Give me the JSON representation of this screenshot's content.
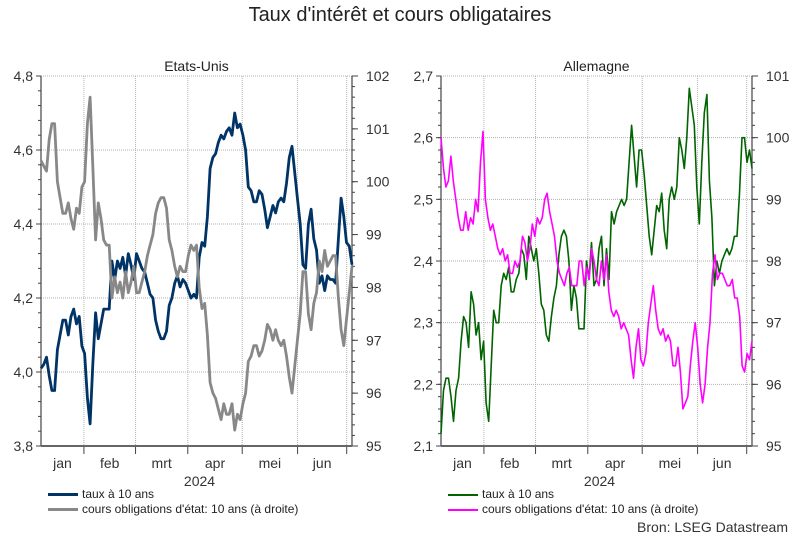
{
  "title": "Taux d'intérêt et cours obligataires",
  "source": "Bron: LSEG Datastream",
  "colors": {
    "us_rate": "#003366",
    "us_price": "#888888",
    "de_rate": "#006400",
    "de_price": "#ff00ff",
    "grid": "#aaaaaa",
    "axis": "#444444"
  },
  "panels": [
    {
      "title": "Etats-Unis",
      "x_labels": [
        "jan",
        "feb",
        "mrt",
        "apr",
        "mei",
        "jun"
      ],
      "year_label": "2024",
      "left_ticks": [
        "4,8",
        "4,6",
        "4,4",
        "4,2",
        "4,0",
        "3,8"
      ],
      "right_ticks": [
        "102",
        "101",
        "100",
        "99",
        "98",
        "97",
        "96",
        "95"
      ],
      "legend": [
        {
          "label": "taux à 10 ans",
          "color": "#003366"
        },
        {
          "label": "cours obligations d'état: 10 ans (à droite)",
          "color": "#888888"
        }
      ]
    },
    {
      "title": "Allemagne",
      "x_labels": [
        "jan",
        "feb",
        "mrt",
        "apr",
        "mei",
        "jun"
      ],
      "year_label": "2024",
      "left_ticks": [
        "2,7",
        "2,6",
        "2,5",
        "2,4",
        "2,3",
        "2,2",
        "2,1"
      ],
      "right_ticks": [
        "101",
        "100",
        "99",
        "98",
        "97",
        "96",
        "95"
      ],
      "legend": [
        {
          "label": "taux à 10 ans",
          "color": "#006400"
        },
        {
          "label": "cours obligations d'état: 10 ans (à droite)",
          "color": "#ff00ff"
        }
      ]
    }
  ],
  "chart_data": [
    {
      "type": "line",
      "title": "Etats-Unis",
      "xlabel": "2024",
      "x_range": [
        "2024-01-01",
        "2024-07-01"
      ],
      "categories": [
        "jan",
        "feb",
        "mrt",
        "apr",
        "mei",
        "jun"
      ],
      "ylabel_left": "taux à 10 ans (%)",
      "ylabel_right": "cours obligations d'état: 10 ans",
      "ylim_left": [
        3.8,
        4.8
      ],
      "ylim_right": [
        95,
        102
      ],
      "grid": true,
      "legend_position": "bottom",
      "series": [
        {
          "name": "taux à 10 ans",
          "axis": "left",
          "values": [
            4.01,
            4.02,
            4.04,
            3.99,
            3.95,
            3.95,
            4.06,
            4.1,
            4.14,
            4.14,
            4.1,
            4.15,
            4.17,
            4.13,
            4.15,
            4.07,
            4.05,
            3.93,
            3.86,
            4.02,
            4.16,
            4.09,
            4.13,
            4.17,
            4.17,
            4.17,
            4.3,
            4.25,
            4.3,
            4.28,
            4.31,
            4.26,
            4.32,
            4.29,
            4.25,
            4.32,
            4.3,
            4.28,
            4.27,
            4.24,
            4.21,
            4.2,
            4.14,
            4.11,
            4.09,
            4.09,
            4.11,
            4.18,
            4.2,
            4.24,
            4.26,
            4.23,
            4.25,
            4.24,
            4.22,
            4.2,
            4.21,
            4.2,
            4.31,
            4.35,
            4.34,
            4.42,
            4.55,
            4.58,
            4.59,
            4.62,
            4.64,
            4.63,
            4.65,
            4.66,
            4.64,
            4.7,
            4.66,
            4.67,
            4.64,
            4.6,
            4.5,
            4.49,
            4.46,
            4.46,
            4.49,
            4.48,
            4.44,
            4.39,
            4.42,
            4.45,
            4.43,
            4.46,
            4.47,
            4.46,
            4.51,
            4.58,
            4.61,
            4.54,
            4.47,
            4.4,
            4.29,
            4.28,
            4.4,
            4.44,
            4.36,
            4.33,
            4.24,
            4.26,
            4.22,
            4.26,
            4.25,
            4.25,
            4.24,
            4.36,
            4.47,
            4.42,
            4.35,
            4.34,
            4.29
          ]
        },
        {
          "name": "cours obligations d'état: 10 ans (à droite)",
          "axis": "right",
          "values": [
            100.4,
            100.3,
            100.2,
            100.8,
            101.1,
            101.1,
            100.0,
            99.7,
            99.4,
            99.4,
            99.6,
            99.3,
            99.1,
            99.5,
            99.4,
            99.9,
            100.0,
            101.1,
            101.6,
            100.3,
            98.9,
            99.6,
            99.3,
            98.9,
            98.8,
            98.8,
            97.8,
            98.2,
            97.9,
            98.1,
            97.8,
            98.3,
            97.9,
            98.1,
            98.4,
            97.9,
            97.9,
            98.1,
            98.3,
            98.6,
            98.8,
            99.0,
            99.4,
            99.6,
            99.7,
            99.7,
            99.5,
            98.9,
            98.7,
            98.4,
            98.2,
            98.4,
            98.3,
            98.3,
            98.6,
            98.8,
            98.7,
            98.8,
            98.0,
            97.6,
            97.7,
            97.1,
            96.2,
            96.0,
            95.9,
            95.7,
            95.5,
            95.8,
            95.6,
            95.6,
            95.8,
            95.3,
            95.6,
            95.5,
            95.8,
            96.0,
            96.6,
            96.7,
            96.9,
            96.9,
            96.7,
            96.8,
            97.0,
            97.3,
            97.2,
            97.0,
            97.2,
            97.0,
            96.9,
            97.0,
            96.7,
            96.3,
            96.0,
            96.5,
            97.0,
            97.5,
            98.3,
            98.3,
            97.5,
            97.2,
            97.7,
            97.9,
            98.5,
            98.3,
            98.7,
            98.4,
            98.5,
            98.6,
            98.6,
            97.8,
            97.2,
            96.9,
            97.4,
            97.9,
            98.4
          ]
        }
      ]
    },
    {
      "type": "line",
      "title": "Allemagne",
      "xlabel": "2024",
      "x_range": [
        "2024-01-01",
        "2024-07-01"
      ],
      "categories": [
        "jan",
        "feb",
        "mrt",
        "apr",
        "mei",
        "jun"
      ],
      "ylabel_left": "taux à 10 ans (%)",
      "ylabel_right": "cours obligations d'état: 10 ans",
      "ylim_left": [
        2.1,
        2.7
      ],
      "ylim_right": [
        95,
        101
      ],
      "grid": true,
      "legend_position": "bottom",
      "series": [
        {
          "name": "taux à 10 ans",
          "axis": "left",
          "values": [
            2.12,
            2.19,
            2.21,
            2.21,
            2.18,
            2.14,
            2.19,
            2.21,
            2.27,
            2.31,
            2.3,
            2.26,
            2.35,
            2.33,
            2.28,
            2.3,
            2.24,
            2.27,
            2.17,
            2.14,
            2.23,
            2.32,
            2.3,
            2.3,
            2.36,
            2.38,
            2.37,
            2.39,
            2.35,
            2.35,
            2.37,
            2.38,
            2.42,
            2.41,
            2.37,
            2.44,
            2.42,
            2.4,
            2.42,
            2.38,
            2.33,
            2.32,
            2.28,
            2.27,
            2.31,
            2.34,
            2.36,
            2.41,
            2.44,
            2.45,
            2.44,
            2.4,
            2.32,
            2.36,
            2.34,
            2.29,
            2.29,
            2.29,
            2.4,
            2.37,
            2.43,
            2.36,
            2.37,
            2.42,
            2.44,
            2.36,
            2.42,
            2.37,
            2.48,
            2.46,
            2.48,
            2.49,
            2.5,
            2.49,
            2.5,
            2.56,
            2.62,
            2.57,
            2.52,
            2.58,
            2.58,
            2.54,
            2.49,
            2.44,
            2.41,
            2.45,
            2.49,
            2.48,
            2.51,
            2.45,
            2.42,
            2.5,
            2.52,
            2.5,
            2.52,
            2.6,
            2.58,
            2.55,
            2.6,
            2.68,
            2.65,
            2.62,
            2.52,
            2.46,
            2.56,
            2.64,
            2.67,
            2.53,
            2.47,
            2.36,
            2.4,
            2.38,
            2.4,
            2.41,
            2.42,
            2.41,
            2.42,
            2.44,
            2.44,
            2.51,
            2.6,
            2.6,
            2.56,
            2.58,
            2.55
          ]
        },
        {
          "name": "cours obligations d'état: 10 ans (à droite)",
          "axis": "right",
          "values": [
            100.0,
            99.5,
            99.2,
            99.3,
            99.7,
            99.3,
            99.0,
            98.7,
            98.5,
            98.5,
            98.8,
            98.5,
            98.7,
            98.6,
            99.0,
            98.8,
            99.6,
            100.1,
            99.0,
            98.7,
            98.5,
            98.6,
            98.4,
            98.2,
            98.1,
            98.2,
            98.0,
            98.1,
            97.8,
            97.8,
            98.0,
            97.9,
            98.0,
            98.4,
            98.3,
            98.0,
            98.2,
            98.6,
            98.4,
            98.7,
            98.6,
            98.7,
            99.0,
            99.1,
            98.8,
            98.6,
            98.4,
            98.0,
            97.8,
            97.7,
            97.6,
            97.8,
            97.9,
            97.6,
            97.6,
            97.6,
            98.0,
            98.0,
            97.6,
            97.9,
            97.7,
            98.2,
            98.0,
            97.7,
            97.6,
            98.0,
            97.7,
            98.1,
            97.5,
            97.2,
            97.1,
            97.2,
            97.1,
            96.9,
            97.0,
            96.9,
            96.8,
            96.4,
            96.1,
            96.6,
            96.9,
            96.4,
            96.3,
            96.5,
            97.0,
            97.3,
            97.6,
            97.2,
            96.9,
            96.8,
            96.9,
            96.7,
            96.8,
            96.7,
            96.3,
            96.3,
            96.6,
            96.2,
            95.6,
            95.7,
            95.8,
            96.3,
            96.7,
            97.0,
            96.6,
            96.0,
            95.7,
            96.0,
            96.6,
            97.0,
            97.8,
            98.1,
            97.7,
            97.8,
            97.8,
            97.7,
            97.6,
            97.6,
            97.7,
            97.4,
            97.4,
            97.1,
            96.3,
            96.2,
            96.5,
            96.4,
            96.7
          ]
        }
      ]
    }
  ]
}
